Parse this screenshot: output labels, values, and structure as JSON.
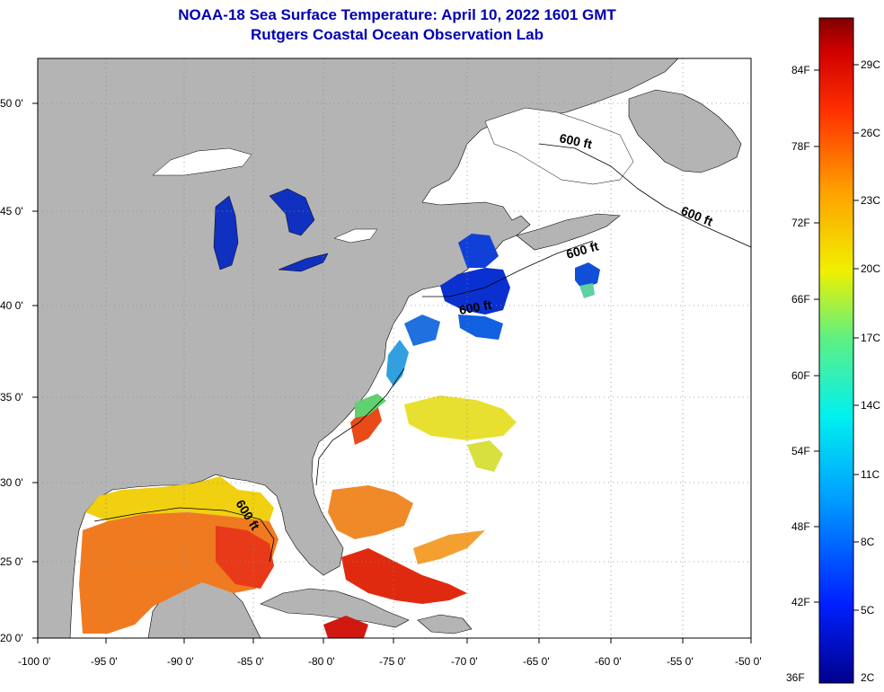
{
  "title": {
    "line1": "NOAA-18 Sea Surface Temperature:  April 10, 2022 1601 GMT",
    "line2": "Rutgers Coastal Ocean Observation Lab"
  },
  "axes": {
    "x_ticks": [
      "-100 0'",
      "-95 0'",
      "-90 0'",
      "-85 0'",
      "-80 0'",
      "-75 0'",
      "-70 0'",
      "-65 0'",
      "-60 0'",
      "-55 0'",
      "-50 0'"
    ],
    "y_ticks": [
      "50 0'",
      "45 0'",
      "40 0'",
      "35 0'",
      "30 0'",
      "25 0'",
      "20 0'"
    ]
  },
  "contours": [
    {
      "label": "600 ft"
    },
    {
      "label": "600 ft"
    },
    {
      "label": "600 ft"
    },
    {
      "label": "600 ft"
    },
    {
      "label": "600 ft"
    }
  ],
  "colorbar": {
    "fahrenheit": [
      "84F",
      "78F",
      "72F",
      "66F",
      "60F",
      "54F",
      "48F",
      "42F",
      "36F"
    ],
    "celsius": [
      "29C",
      "26C",
      "23C",
      "20C",
      "17C",
      "14C",
      "11C",
      "8C",
      "5C",
      "2C"
    ]
  },
  "colors": {
    "land": "#b4b4b4",
    "title": "#0000b4",
    "cold": "#0a2fd6",
    "warm_orange": "#f07020",
    "hot_red": "#e02010",
    "yellow": "#f0e020"
  }
}
